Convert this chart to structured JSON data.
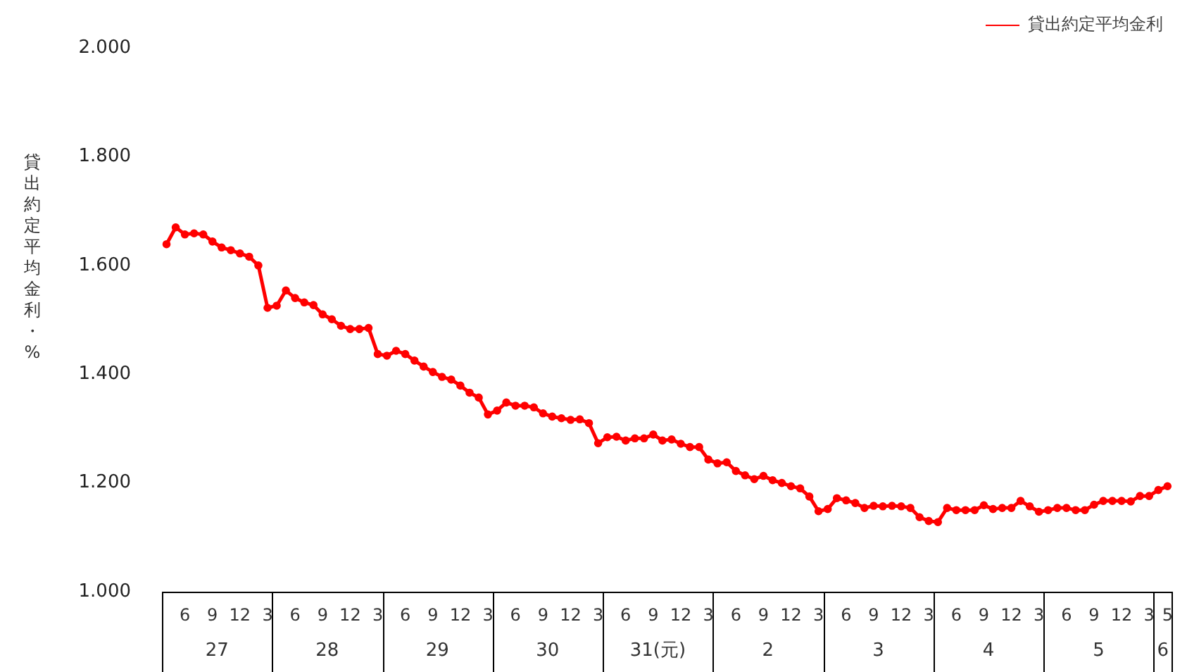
{
  "chart_data": {
    "type": "line",
    "ylabel": "貸出約定平均金利・%",
    "categories": [
      null,
      null,
      "6",
      null,
      null,
      "9",
      null,
      null,
      "12",
      null,
      null,
      "3",
      null,
      null,
      "6",
      null,
      null,
      "9",
      null,
      null,
      "12",
      null,
      null,
      "3",
      null,
      null,
      "6",
      null,
      null,
      "9",
      null,
      null,
      "12",
      null,
      null,
      "3",
      null,
      null,
      "6",
      null,
      null,
      "9",
      null,
      null,
      "12",
      null,
      null,
      "3",
      null,
      null,
      "6",
      null,
      null,
      "9",
      null,
      null,
      "12",
      null,
      null,
      "3",
      null,
      null,
      "6",
      null,
      null,
      "9",
      null,
      null,
      "12",
      null,
      null,
      "3",
      null,
      null,
      "6",
      null,
      null,
      "9",
      null,
      null,
      "12",
      null,
      null,
      "3",
      null,
      null,
      "6",
      null,
      null,
      "9",
      null,
      null,
      "12",
      null,
      null,
      "3",
      null,
      null,
      "6",
      null,
      null,
      "9",
      null,
      null,
      "12",
      null,
      null,
      "3",
      null,
      "5"
    ],
    "annotations": [
      "27",
      "28",
      "29",
      "30",
      "31(元)",
      "2",
      "3",
      "4",
      "5",
      "6"
    ],
    "series": [
      {
        "name": "貸出約定平均金利",
        "color": "#ff0000",
        "values": [
          1.639,
          1.67,
          1.657,
          1.659,
          1.657,
          1.644,
          1.633,
          1.628,
          1.622,
          1.616,
          1.6,
          1.522,
          1.526,
          1.554,
          1.54,
          1.532,
          1.527,
          1.51,
          1.501,
          1.489,
          1.483,
          1.483,
          1.485,
          1.437,
          1.434,
          1.443,
          1.437,
          1.425,
          1.414,
          1.404,
          1.395,
          1.39,
          1.379,
          1.366,
          1.357,
          1.326,
          1.333,
          1.348,
          1.342,
          1.342,
          1.339,
          1.328,
          1.322,
          1.319,
          1.316,
          1.317,
          1.31,
          1.273,
          1.284,
          1.285,
          1.278,
          1.282,
          1.282,
          1.289,
          1.278,
          1.28,
          1.272,
          1.266,
          1.266,
          1.243,
          1.236,
          1.238,
          1.222,
          1.214,
          1.207,
          1.213,
          1.205,
          1.2,
          1.194,
          1.19,
          1.175,
          1.148,
          1.152,
          1.172,
          1.168,
          1.163,
          1.154,
          1.158,
          1.157,
          1.158,
          1.157,
          1.154,
          1.137,
          1.13,
          1.128,
          1.154,
          1.15,
          1.15,
          1.15,
          1.159,
          1.152,
          1.154,
          1.154,
          1.167,
          1.157,
          1.147,
          1.15,
          1.154,
          1.154,
          1.15,
          1.15,
          1.16,
          1.167,
          1.167,
          1.167,
          1.166,
          1.176,
          1.176,
          1.187,
          1.194
        ]
      }
    ],
    "ylim": [
      1,
      2
    ],
    "yticks": [
      {
        "value": 1,
        "label": "1.000"
      },
      {
        "value": 1.2,
        "label": "1.200"
      },
      {
        "value": 1.4,
        "label": "1.400"
      },
      {
        "value": 1.6,
        "label": "1.600"
      },
      {
        "value": 1.8,
        "label": "1.800"
      },
      {
        "value": 2,
        "label": "2.000"
      }
    ],
    "grid": false,
    "legend": "top right",
    "marker": "circle",
    "line_style": "solid"
  }
}
